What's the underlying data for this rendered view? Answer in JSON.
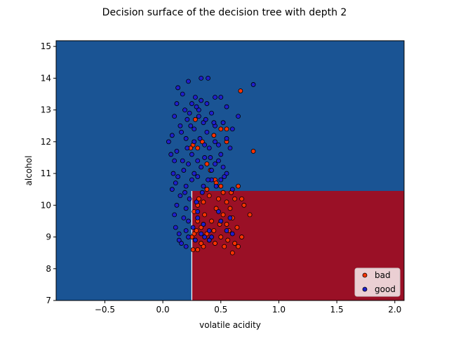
{
  "chart_data": {
    "type": "scatter",
    "title": "Decision surface of the decision tree with depth 2",
    "xlabel": "volatile acidity",
    "ylabel": "alcohol",
    "xlim": [
      -0.92,
      2.08
    ],
    "ylim": [
      7.0,
      15.18
    ],
    "xticks": [
      -0.5,
      0.0,
      0.5,
      1.0,
      1.5,
      2.0
    ],
    "xtick_labels": [
      "−0.5",
      "0.0",
      "0.5",
      "1.0",
      "1.5",
      "2.0"
    ],
    "yticks": [
      7,
      8,
      9,
      10,
      11,
      12,
      13,
      14,
      15
    ],
    "ytick_labels": [
      "7",
      "8",
      "9",
      "10",
      "11",
      "12",
      "13",
      "14",
      "15"
    ],
    "decision_surface": {
      "regions": [
        {
          "class": "good",
          "color": "#1a5494",
          "x": [
            -0.92,
            2.08
          ],
          "y": [
            7.0,
            15.18
          ]
        },
        {
          "class": "bad",
          "color": "#9a1026",
          "x": [
            0.25,
            2.08
          ],
          "y": [
            7.0,
            10.45
          ]
        }
      ],
      "split_x": 0.25,
      "split_y": 10.45
    },
    "legend": {
      "position": "lower-right",
      "entries": [
        {
          "label": "bad",
          "color": "#ff3300"
        },
        {
          "label": "good",
          "color": "#1f1fcc"
        }
      ]
    },
    "series": [
      {
        "name": "good",
        "color": "#1f1fcc",
        "points": [
          [
            0.13,
            13.7
          ],
          [
            0.22,
            13.9
          ],
          [
            0.33,
            14.0
          ],
          [
            0.39,
            14.0
          ],
          [
            0.78,
            13.8
          ],
          [
            0.17,
            13.5
          ],
          [
            0.28,
            13.4
          ],
          [
            0.45,
            13.4
          ],
          [
            0.5,
            13.4
          ],
          [
            0.25,
            13.2
          ],
          [
            0.33,
            13.3
          ],
          [
            0.38,
            13.2
          ],
          [
            0.12,
            13.2
          ],
          [
            0.19,
            13.0
          ],
          [
            0.31,
            13.0
          ],
          [
            0.42,
            12.9
          ],
          [
            0.55,
            13.1
          ],
          [
            0.65,
            12.8
          ],
          [
            0.1,
            12.8
          ],
          [
            0.21,
            12.7
          ],
          [
            0.35,
            12.6
          ],
          [
            0.45,
            12.5
          ],
          [
            0.52,
            12.6
          ],
          [
            0.15,
            12.5
          ],
          [
            0.27,
            12.4
          ],
          [
            0.38,
            12.3
          ],
          [
            0.6,
            12.4
          ],
          [
            0.08,
            12.2
          ],
          [
            0.2,
            12.1
          ],
          [
            0.32,
            12.1
          ],
          [
            0.45,
            12.0
          ],
          [
            0.55,
            12.1
          ],
          [
            0.05,
            12.0
          ],
          [
            0.4,
            11.8
          ],
          [
            0.48,
            11.9
          ],
          [
            0.58,
            11.8
          ],
          [
            0.12,
            11.7
          ],
          [
            0.25,
            11.6
          ],
          [
            0.36,
            11.5
          ],
          [
            0.5,
            11.6
          ],
          [
            0.1,
            11.4
          ],
          [
            0.22,
            11.3
          ],
          [
            0.33,
            11.2
          ],
          [
            0.45,
            11.3
          ],
          [
            0.52,
            11.2
          ],
          [
            0.09,
            11.0
          ],
          [
            0.18,
            11.1
          ],
          [
            0.3,
            10.9
          ],
          [
            0.42,
            10.8
          ],
          [
            0.5,
            10.8
          ],
          [
            0.55,
            11.0
          ],
          [
            0.11,
            10.7
          ],
          [
            0.2,
            10.6
          ],
          [
            0.35,
            10.6
          ],
          [
            0.46,
            10.6
          ],
          [
            0.6,
            10.5
          ],
          [
            0.08,
            10.5
          ],
          [
            0.15,
            10.3
          ],
          [
            0.23,
            10.2
          ],
          [
            0.12,
            10.0
          ],
          [
            0.2,
            9.9
          ],
          [
            0.1,
            9.7
          ],
          [
            0.18,
            9.6
          ],
          [
            0.22,
            9.5
          ],
          [
            0.11,
            9.3
          ],
          [
            0.2,
            9.2
          ],
          [
            0.14,
            9.1
          ],
          [
            0.22,
            9.0
          ],
          [
            0.16,
            8.8
          ],
          [
            0.2,
            8.7
          ],
          [
            0.14,
            8.9
          ],
          [
            0.3,
            9.6
          ],
          [
            0.35,
            9.4
          ],
          [
            0.4,
            9.2
          ],
          [
            0.42,
            9.0
          ],
          [
            0.5,
            9.5
          ],
          [
            0.55,
            9.2
          ],
          [
            0.6,
            9.1
          ],
          [
            0.48,
            9.8
          ],
          [
            0.58,
            9.6
          ],
          [
            0.3,
            9.8
          ],
          [
            0.36,
            9.0
          ],
          [
            0.28,
            8.9
          ],
          [
            0.26,
            9.3
          ],
          [
            0.33,
            9.1
          ],
          [
            0.4,
            8.9
          ],
          [
            0.3,
            11.4
          ],
          [
            0.27,
            12.0
          ],
          [
            0.31,
            12.8
          ],
          [
            0.24,
            12.5
          ],
          [
            0.36,
            11.9
          ],
          [
            0.42,
            11.1
          ],
          [
            0.16,
            12.3
          ],
          [
            0.29,
            13.1
          ],
          [
            0.21,
            11.8
          ],
          [
            0.34,
            10.4
          ],
          [
            0.25,
            10.8
          ],
          [
            0.44,
            12.6
          ],
          [
            0.53,
            10.9
          ],
          [
            0.07,
            11.6
          ],
          [
            0.19,
            10.4
          ],
          [
            0.37,
            12.7
          ],
          [
            0.29,
            10.1
          ],
          [
            0.41,
            11.5
          ],
          [
            0.13,
            10.9
          ],
          [
            0.23,
            12.9
          ],
          [
            0.39,
            10.8
          ],
          [
            0.48,
            11.4
          ],
          [
            0.17,
            11.4
          ],
          [
            0.27,
            11.0
          ]
        ]
      },
      {
        "name": "bad",
        "color": "#ff3300",
        "points": [
          [
            0.67,
            13.6
          ],
          [
            0.78,
            11.7
          ],
          [
            0.55,
            12.4
          ],
          [
            0.5,
            12.4
          ],
          [
            0.44,
            12.2
          ],
          [
            0.34,
            12.0
          ],
          [
            0.26,
            11.9
          ],
          [
            0.55,
            12.0
          ],
          [
            0.3,
            11.8
          ],
          [
            0.38,
            11.3
          ],
          [
            0.45,
            10.8
          ],
          [
            0.5,
            10.6
          ],
          [
            0.65,
            10.6
          ],
          [
            0.28,
            12.7
          ],
          [
            0.24,
            11.8
          ],
          [
            0.41,
            11.1
          ],
          [
            0.38,
            10.5
          ],
          [
            0.46,
            10.7
          ],
          [
            0.52,
            10.4
          ],
          [
            0.59,
            10.4
          ],
          [
            0.62,
            10.2
          ],
          [
            0.7,
            10.0
          ],
          [
            0.68,
            10.2
          ],
          [
            0.75,
            9.7
          ],
          [
            0.58,
            9.9
          ],
          [
            0.55,
            10.1
          ],
          [
            0.48,
            10.2
          ],
          [
            0.4,
            10.3
          ],
          [
            0.35,
            10.1
          ],
          [
            0.3,
            10.0
          ],
          [
            0.27,
            9.8
          ],
          [
            0.3,
            9.5
          ],
          [
            0.36,
            9.7
          ],
          [
            0.42,
            9.5
          ],
          [
            0.46,
            9.9
          ],
          [
            0.52,
            9.7
          ],
          [
            0.6,
            9.6
          ],
          [
            0.64,
            9.3
          ],
          [
            0.68,
            9.0
          ],
          [
            0.62,
            8.8
          ],
          [
            0.56,
            8.9
          ],
          [
            0.5,
            9.0
          ],
          [
            0.45,
            8.8
          ],
          [
            0.4,
            8.9
          ],
          [
            0.35,
            8.7
          ],
          [
            0.3,
            8.6
          ],
          [
            0.26,
            8.6
          ],
          [
            0.27,
            9.1
          ],
          [
            0.33,
            9.3
          ],
          [
            0.38,
            9.1
          ],
          [
            0.44,
            9.2
          ],
          [
            0.55,
            9.4
          ],
          [
            0.65,
            8.7
          ],
          [
            0.6,
            8.5
          ],
          [
            0.49,
            9.4
          ],
          [
            0.33,
            8.8
          ],
          [
            0.29,
            9.2
          ],
          [
            0.25,
            9.0
          ],
          [
            0.31,
            10.2
          ],
          [
            0.57,
            9.2
          ],
          [
            0.53,
            8.7
          ]
        ]
      }
    ]
  }
}
